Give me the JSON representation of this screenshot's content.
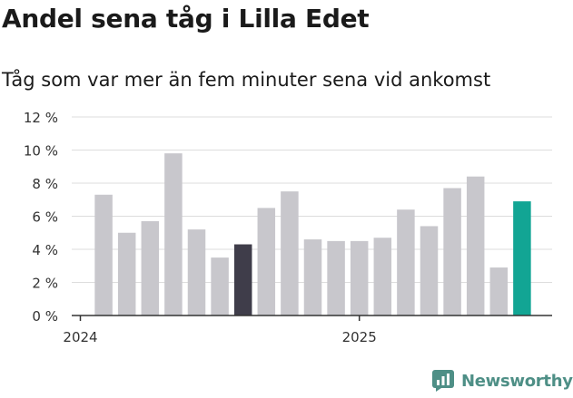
{
  "header": {
    "title": "Andel sena tåg i Lilla Edet",
    "subtitle": "Tåg som var mer än fem minuter sena vid ankomst"
  },
  "brand": {
    "name": "Newsworthy",
    "icon": "newsworthy-logo-icon",
    "color": "#4e8f86"
  },
  "colors": {
    "default_bar": "#c8c7cc",
    "highlight_bar": "#3f3d4a",
    "latest_bar": "#12a594",
    "grid": "#dddddd",
    "axis": "#333333"
  },
  "chart_data": {
    "type": "bar",
    "title": "Andel sena tåg i Lilla Edet",
    "subtitle": "Tåg som var mer än fem minuter sena vid ankomst",
    "ylim": [
      0,
      12
    ],
    "yticks": [
      0,
      2,
      4,
      6,
      8,
      10,
      12
    ],
    "ytick_labels": [
      "0 %",
      "2 %",
      "4 %",
      "6 %",
      "8 %",
      "10 %",
      "12 %"
    ],
    "grid": true,
    "x_tick_labels": [
      {
        "label": "2024",
        "index": 0
      },
      {
        "label": "2025",
        "index": 12
      }
    ],
    "categories": [
      "2024-01",
      "2024-02",
      "2024-03",
      "2024-04",
      "2024-05",
      "2024-06",
      "2024-07",
      "2024-08",
      "2024-09",
      "2024-10",
      "2024-11",
      "2024-12",
      "2025-01",
      "2025-02",
      "2025-03",
      "2025-04",
      "2025-05",
      "2025-06",
      "2025-07",
      "2025-08"
    ],
    "values": [
      null,
      7.3,
      5.0,
      5.7,
      9.8,
      5.2,
      3.5,
      4.3,
      6.5,
      7.5,
      4.6,
      4.5,
      4.5,
      4.7,
      6.4,
      5.4,
      7.7,
      8.4,
      2.9,
      6.9
    ],
    "highlight_index": 7,
    "latest_index": 19
  }
}
